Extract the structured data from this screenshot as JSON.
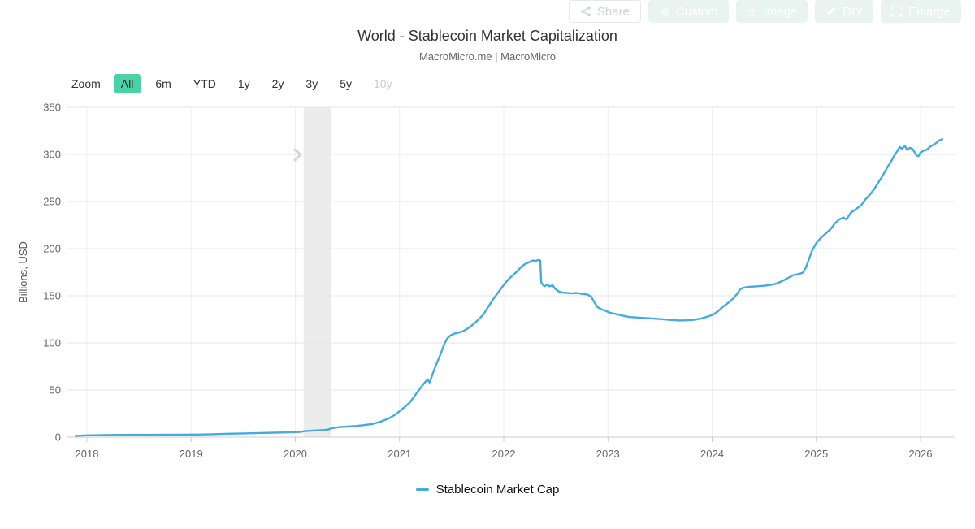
{
  "toolbar": {
    "share_label": "Share",
    "custom_label": "Custom",
    "image_label": "Image",
    "diy_label": "DIY",
    "enlarge_label": "Enlarge"
  },
  "zoom_controls": {
    "label": "Zoom",
    "options": [
      {
        "label": "All",
        "selected": true
      },
      {
        "label": "6m"
      },
      {
        "label": "YTD"
      },
      {
        "label": "1y"
      },
      {
        "label": "2y"
      },
      {
        "label": "3y"
      },
      {
        "label": "5y"
      },
      {
        "label": "10y",
        "disabled": true
      }
    ]
  },
  "colors": {
    "accent_teal": "#4ad1a5",
    "line_blue": "#45aadd",
    "band_gray": "#ececec",
    "grid_gray": "#e6e6e6",
    "vgrid_gray": "#efefef",
    "axis_gray": "#cccccc",
    "tick_label_gray": "#666666",
    "toolbar_btn_bg": "#e9f3f0"
  },
  "chart_data": {
    "type": "line",
    "title": "World - Stablecoin Market Capitalization",
    "subtitle": "MacroMicro.me | MacroMicro",
    "xlabel": "",
    "ylabel": "Billions, USD",
    "ylim": [
      0,
      350
    ],
    "yticks": [
      0,
      50,
      100,
      150,
      200,
      250,
      300,
      350
    ],
    "xticks": [
      2018,
      2019,
      2020,
      2021,
      2022,
      2023,
      2024,
      2025,
      2026
    ],
    "grid": true,
    "legend_position": "bottom",
    "legend": [
      {
        "name": "Stablecoin Market Cap",
        "color": "#45aadd"
      }
    ],
    "plot_band": {
      "from": 2020.08,
      "to": 2020.34,
      "color": "#ececec",
      "note": "recession band"
    },
    "series": [
      {
        "name": "Stablecoin Market Cap",
        "color": "#45aadd",
        "x_unit": "decimal year",
        "y_unit": "billions USD",
        "points": [
          [
            2017.89,
            1.4
          ],
          [
            2018.0,
            1.9
          ],
          [
            2018.15,
            2.2
          ],
          [
            2018.3,
            2.4
          ],
          [
            2018.45,
            2.5
          ],
          [
            2018.6,
            2.4
          ],
          [
            2018.75,
            2.7
          ],
          [
            2018.9,
            2.7
          ],
          [
            2019.05,
            2.8
          ],
          [
            2019.2,
            3.1
          ],
          [
            2019.35,
            3.6
          ],
          [
            2019.5,
            4.0
          ],
          [
            2019.65,
            4.4
          ],
          [
            2019.8,
            4.7
          ],
          [
            2019.95,
            5.1
          ],
          [
            2020.05,
            5.5
          ],
          [
            2020.09,
            6.4
          ],
          [
            2020.15,
            6.8
          ],
          [
            2020.22,
            7.2
          ],
          [
            2020.28,
            7.6
          ],
          [
            2020.32,
            8.2
          ],
          [
            2020.35,
            9.6
          ],
          [
            2020.42,
            10.6
          ],
          [
            2020.5,
            11.2
          ],
          [
            2020.58,
            11.8
          ],
          [
            2020.66,
            12.8
          ],
          [
            2020.74,
            14.0
          ],
          [
            2020.82,
            16.5
          ],
          [
            2020.9,
            20.0
          ],
          [
            2020.96,
            24.0
          ],
          [
            2021.0,
            27.5
          ],
          [
            2021.05,
            32
          ],
          [
            2021.1,
            37
          ],
          [
            2021.14,
            43
          ],
          [
            2021.18,
            49
          ],
          [
            2021.22,
            55
          ],
          [
            2021.25,
            59
          ],
          [
            2021.27,
            61
          ],
          [
            2021.29,
            58
          ],
          [
            2021.32,
            68
          ],
          [
            2021.36,
            79
          ],
          [
            2021.4,
            90
          ],
          [
            2021.43,
            99
          ],
          [
            2021.46,
            105
          ],
          [
            2021.49,
            108
          ],
          [
            2021.53,
            110
          ],
          [
            2021.57,
            111
          ],
          [
            2021.61,
            112.5
          ],
          [
            2021.65,
            115
          ],
          [
            2021.69,
            118
          ],
          [
            2021.73,
            122
          ],
          [
            2021.77,
            126
          ],
          [
            2021.81,
            131
          ],
          [
            2021.85,
            138
          ],
          [
            2021.89,
            145
          ],
          [
            2021.93,
            151
          ],
          [
            2021.97,
            157
          ],
          [
            2022.01,
            163
          ],
          [
            2022.05,
            168
          ],
          [
            2022.09,
            172
          ],
          [
            2022.13,
            176
          ],
          [
            2022.17,
            181
          ],
          [
            2022.21,
            184
          ],
          [
            2022.25,
            186
          ],
          [
            2022.28,
            187.5
          ],
          [
            2022.31,
            187
          ],
          [
            2022.33,
            188
          ],
          [
            2022.35,
            187.5
          ],
          [
            2022.36,
            164
          ],
          [
            2022.39,
            160
          ],
          [
            2022.42,
            162
          ],
          [
            2022.44,
            160
          ],
          [
            2022.47,
            161
          ],
          [
            2022.49,
            158
          ],
          [
            2022.52,
            155
          ],
          [
            2022.56,
            153.5
          ],
          [
            2022.6,
            153
          ],
          [
            2022.65,
            152.5
          ],
          [
            2022.7,
            153
          ],
          [
            2022.75,
            152
          ],
          [
            2022.8,
            151.5
          ],
          [
            2022.84,
            149
          ],
          [
            2022.87,
            143
          ],
          [
            2022.9,
            138
          ],
          [
            2022.94,
            135.5
          ],
          [
            2022.98,
            134
          ],
          [
            2023.02,
            132
          ],
          [
            2023.08,
            130.5
          ],
          [
            2023.14,
            129
          ],
          [
            2023.2,
            127.5
          ],
          [
            2023.27,
            127
          ],
          [
            2023.34,
            126.5
          ],
          [
            2023.41,
            126
          ],
          [
            2023.48,
            125.5
          ],
          [
            2023.55,
            124.8
          ],
          [
            2023.62,
            124.2
          ],
          [
            2023.69,
            123.8
          ],
          [
            2023.76,
            124
          ],
          [
            2023.83,
            124.5
          ],
          [
            2023.9,
            126
          ],
          [
            2023.96,
            128
          ],
          [
            2024.01,
            130
          ],
          [
            2024.06,
            134
          ],
          [
            2024.11,
            139
          ],
          [
            2024.16,
            143
          ],
          [
            2024.2,
            147
          ],
          [
            2024.24,
            152
          ],
          [
            2024.27,
            157
          ],
          [
            2024.3,
            158.5
          ],
          [
            2024.35,
            159.5
          ],
          [
            2024.42,
            160
          ],
          [
            2024.49,
            160.5
          ],
          [
            2024.56,
            161.5
          ],
          [
            2024.62,
            163
          ],
          [
            2024.68,
            166
          ],
          [
            2024.73,
            169
          ],
          [
            2024.78,
            172
          ],
          [
            2024.83,
            173
          ],
          [
            2024.87,
            174.5
          ],
          [
            2024.9,
            180
          ],
          [
            2024.93,
            189
          ],
          [
            2024.96,
            198
          ],
          [
            2025.0,
            206
          ],
          [
            2025.04,
            211
          ],
          [
            2025.09,
            216
          ],
          [
            2025.14,
            221
          ],
          [
            2025.18,
            227
          ],
          [
            2025.22,
            231
          ],
          [
            2025.26,
            233
          ],
          [
            2025.29,
            231
          ],
          [
            2025.33,
            238
          ],
          [
            2025.38,
            242
          ],
          [
            2025.43,
            246
          ],
          [
            2025.47,
            252
          ],
          [
            2025.52,
            258
          ],
          [
            2025.56,
            264
          ],
          [
            2025.6,
            271
          ],
          [
            2025.64,
            278
          ],
          [
            2025.68,
            286
          ],
          [
            2025.72,
            293
          ],
          [
            2025.75,
            299
          ],
          [
            2025.78,
            304
          ],
          [
            2025.8,
            308
          ],
          [
            2025.82,
            306
          ],
          [
            2025.85,
            309
          ],
          [
            2025.87,
            305
          ],
          [
            2025.9,
            307
          ],
          [
            2025.92,
            306
          ],
          [
            2025.94,
            303
          ],
          [
            2025.96,
            299
          ],
          [
            2025.98,
            298
          ],
          [
            2026.0,
            302
          ],
          [
            2026.03,
            304
          ],
          [
            2026.06,
            305
          ],
          [
            2026.09,
            308
          ],
          [
            2026.12,
            310
          ],
          [
            2026.15,
            312
          ],
          [
            2026.18,
            315
          ],
          [
            2026.21,
            316
          ]
        ]
      }
    ]
  }
}
